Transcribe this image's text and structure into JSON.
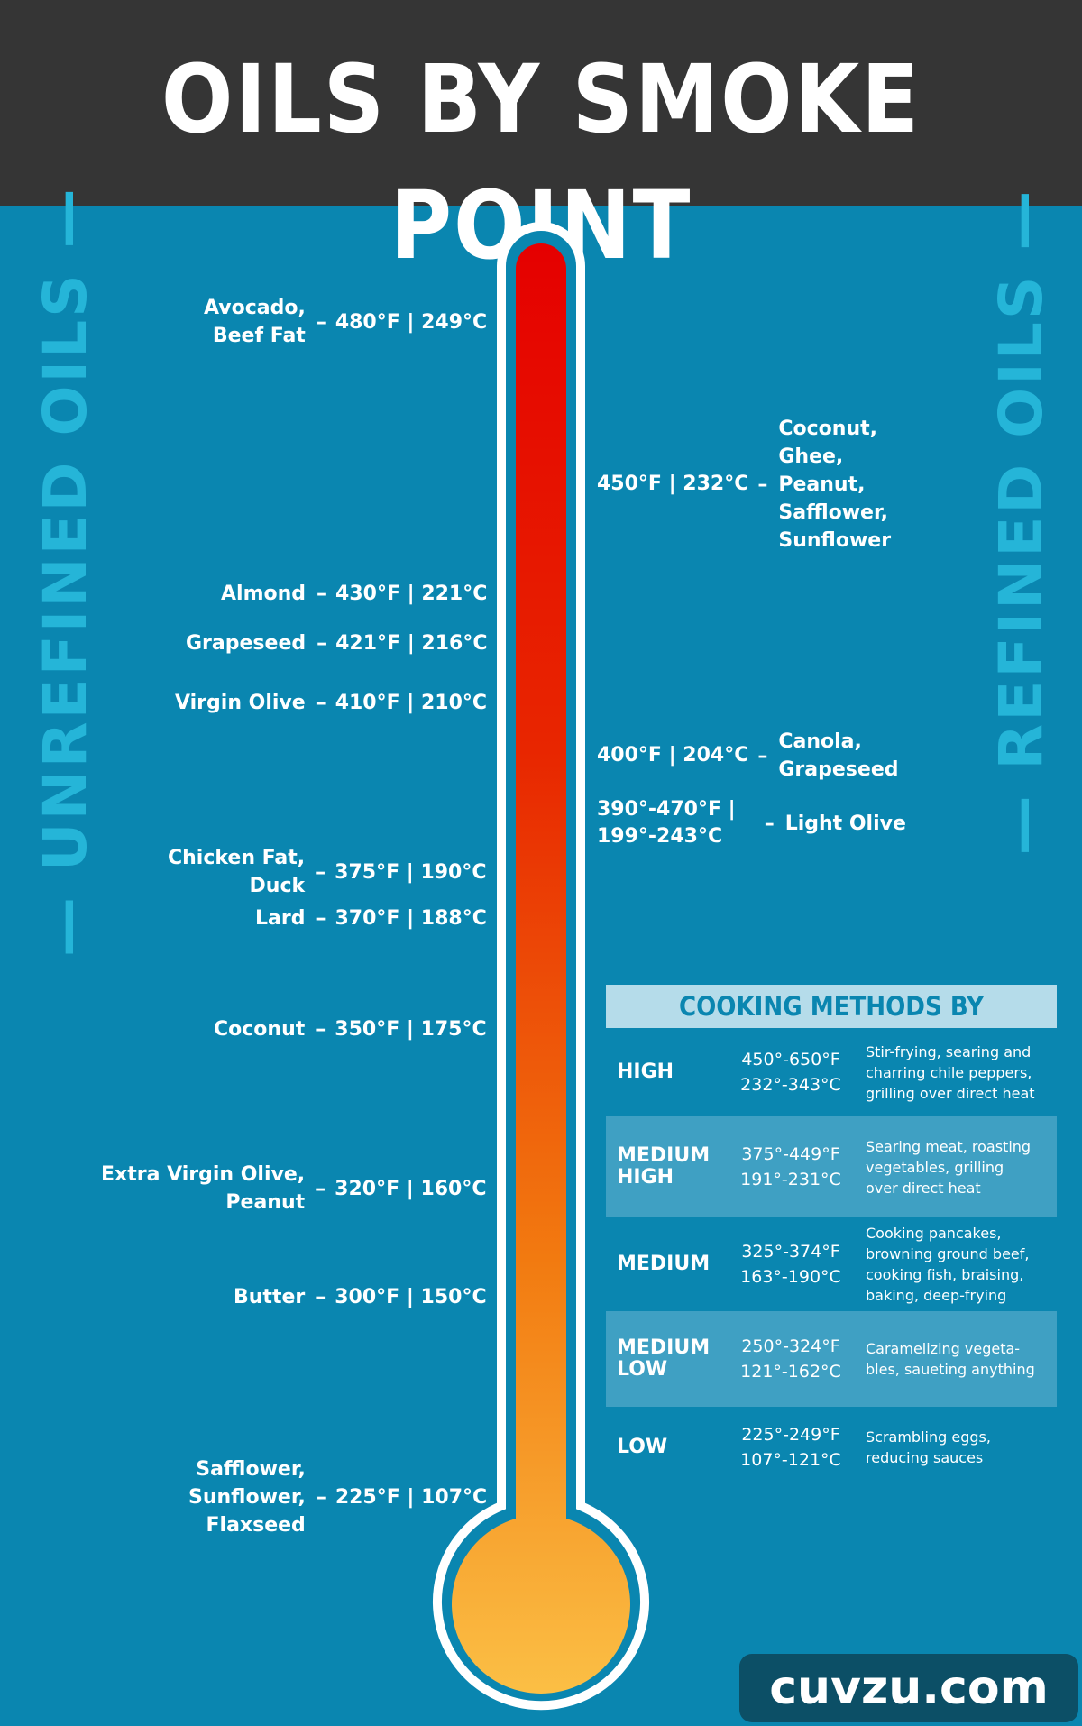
{
  "title": "OILS BY SMOKE POINT",
  "side_labels": {
    "left": "— UNREFINED OILS —",
    "right": "— REFINED OILS —"
  },
  "unrefined": [
    {
      "names": [
        "Avocado,",
        "Beef Fat"
      ],
      "temp": "480°F | 249°C"
    },
    {
      "names": [
        "Almond"
      ],
      "temp": "430°F | 221°C"
    },
    {
      "names": [
        "Grapeseed"
      ],
      "temp": "421°F | 216°C"
    },
    {
      "names": [
        "Virgin Olive"
      ],
      "temp": "410°F | 210°C"
    },
    {
      "names": [
        "Chicken Fat,",
        "Duck"
      ],
      "temp": "375°F | 190°C"
    },
    {
      "names": [
        "Lard"
      ],
      "temp": "370°F | 188°C"
    },
    {
      "names": [
        "Coconut"
      ],
      "temp": "350°F | 175°C"
    },
    {
      "names": [
        "Extra Virgin Olive,",
        "Peanut"
      ],
      "temp": "320°F | 160°C"
    },
    {
      "names": [
        "Butter"
      ],
      "temp": "300°F | 150°C"
    },
    {
      "names": [
        "Safflower,",
        "Sunflower,",
        "Flaxseed"
      ],
      "temp": "225°F | 107°C"
    }
  ],
  "refined": [
    {
      "temp": [
        "450°F | 232°C"
      ],
      "names": [
        "Coconut,",
        "Ghee,",
        "Peanut,",
        "Safflower,",
        "Sunflower"
      ]
    },
    {
      "temp": [
        "400°F | 204°C"
      ],
      "names": [
        "Canola,",
        "Grapeseed"
      ]
    },
    {
      "temp": [
        "390°-470°F |",
        "199°-243°C"
      ],
      "names": [
        "Light Olive"
      ]
    }
  ],
  "dash": "–",
  "methods": {
    "title": "COOKING METHODS BY TEMPERATURE",
    "rows": [
      {
        "level": [
          "HIGH"
        ],
        "f": "450°-650°F",
        "c": "232°-343°C",
        "desc": [
          "Stir-frying, searing and",
          "charring chile peppers,",
          "grilling over direct heat"
        ]
      },
      {
        "level": [
          "MEDIUM",
          "HIGH"
        ],
        "f": "375°-449°F",
        "c": "191°-231°C",
        "desc": [
          "Searing meat, roasting",
          "vegetables, grilling",
          "over direct heat"
        ]
      },
      {
        "level": [
          "MEDIUM"
        ],
        "f": "325°-374°F",
        "c": "163°-190°C",
        "desc": [
          "Cooking pancakes,",
          "browning ground beef,",
          "cooking fish, braising,",
          "baking, deep-frying"
        ]
      },
      {
        "level": [
          "MEDIUM",
          "LOW"
        ],
        "f": "250°-324°F",
        "c": "121°-162°C",
        "desc": [
          "Caramelizing vegeta-",
          "bles, saueting anything"
        ]
      },
      {
        "level": [
          "LOW"
        ],
        "f": "225°-249°F",
        "c": "107°-121°C",
        "desc": [
          "Scrambling eggs,",
          "reducing sauces"
        ]
      }
    ]
  },
  "watermark": "cuvzu.com",
  "colors": {
    "background": "#0a86b0",
    "header": "#353535",
    "side_label": "#25b5d8",
    "thermo_top": "#e50000",
    "thermo_bottom": "#fbbf45"
  }
}
